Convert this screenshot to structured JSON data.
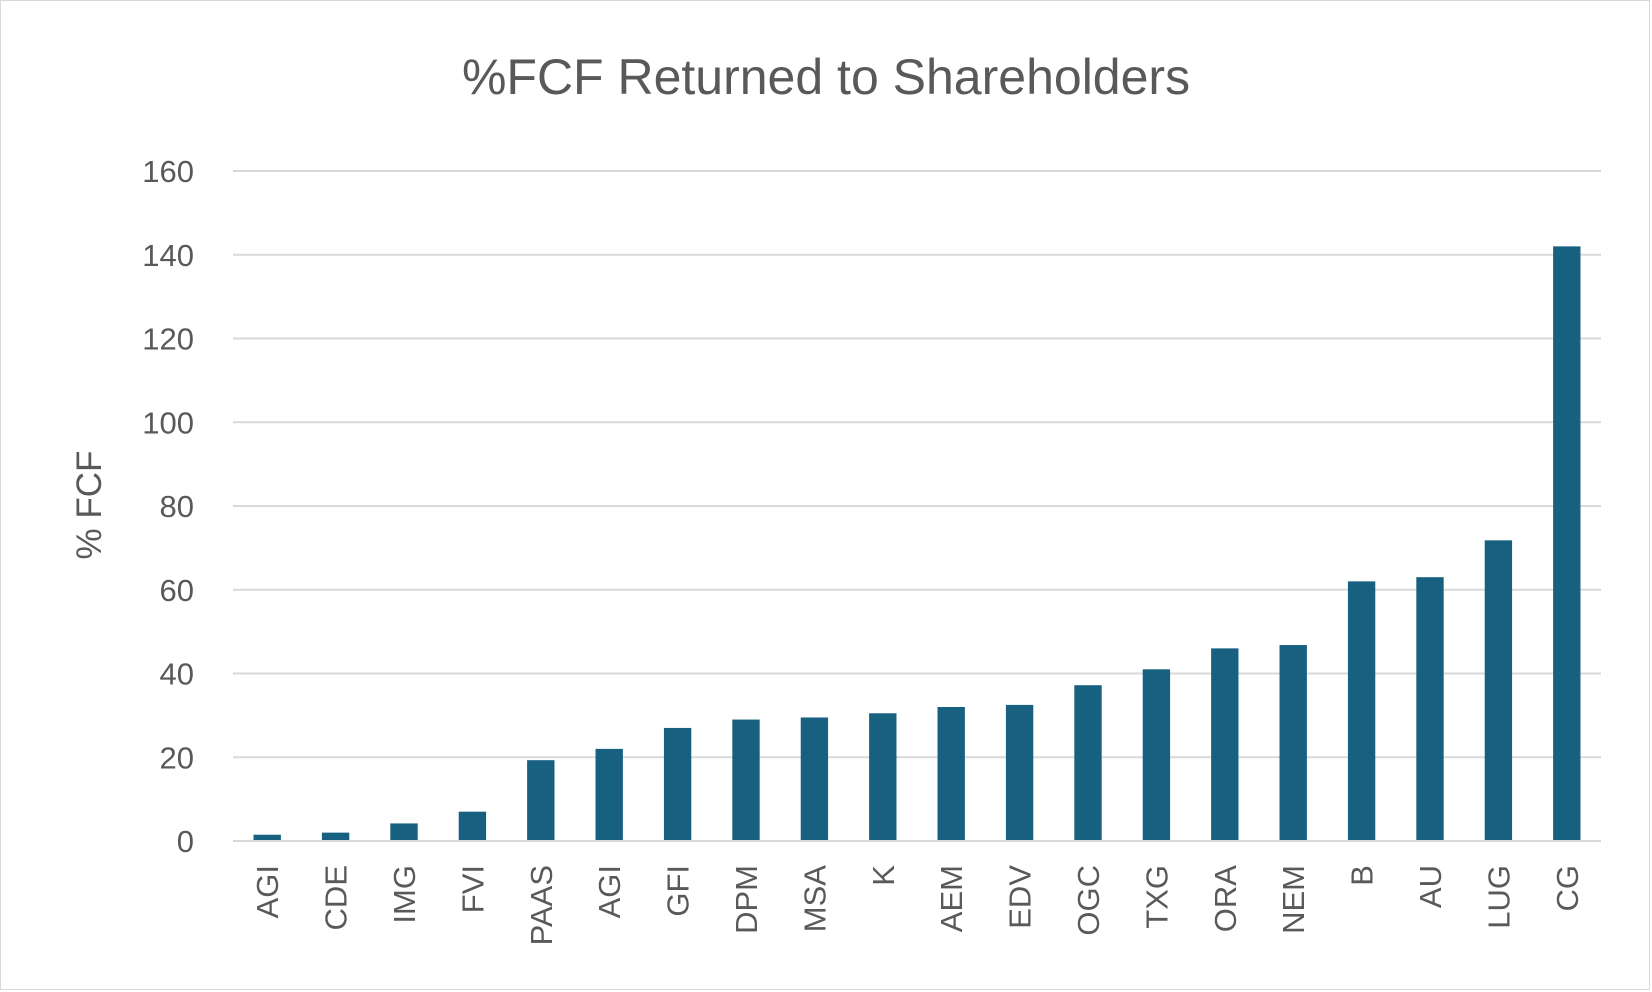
{
  "chart_data": {
    "type": "bar",
    "title": "%FCF Returned to Shareholders",
    "xlabel": "",
    "ylabel": "% FCF",
    "ylim": [
      0,
      160
    ],
    "yticks": [
      0,
      20,
      40,
      60,
      80,
      100,
      120,
      140,
      160
    ],
    "grid": true,
    "legend": "none",
    "bar_color": "#17607f",
    "categories": [
      "AGI",
      "CDE",
      "IMG",
      "FVI",
      "PAAS",
      "AGI",
      "GFI",
      "DPM",
      "MSA",
      "K",
      "AEM",
      "EDV",
      "OGC",
      "TXG",
      "ORA",
      "NEM",
      "B",
      "AU",
      "LUG",
      "CG"
    ],
    "values": [
      1.5,
      2,
      4.2,
      7,
      19.3,
      22,
      27,
      29,
      29.5,
      30.5,
      32,
      32.5,
      37.2,
      41,
      46,
      46.8,
      62,
      63,
      71.8,
      142
    ]
  }
}
